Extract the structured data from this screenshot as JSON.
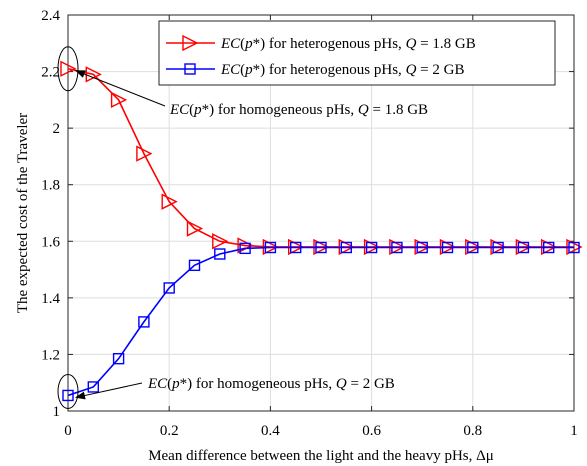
{
  "chart_data": {
    "type": "line",
    "title": "",
    "xlabel": "Mean difference between the light and the heavy pHs, Δμ",
    "ylabel": "The expected cost of the Traveler",
    "xlim": [
      0,
      1
    ],
    "ylim": [
      1,
      2.4
    ],
    "x_ticks": [
      "0",
      "0.2",
      "0.4",
      "0.6",
      "0.8",
      "1"
    ],
    "y_ticks": [
      "1",
      "1.2",
      "1.4",
      "1.6",
      "1.8",
      "2",
      "2.2",
      "2.4"
    ],
    "grid": true,
    "legend_position": "top-right",
    "x": [
      0,
      0.05,
      0.1,
      0.15,
      0.2,
      0.25,
      0.3,
      0.35,
      0.4,
      0.45,
      0.5,
      0.55,
      0.6,
      0.65,
      0.7,
      0.75,
      0.8,
      0.85,
      0.9,
      0.95,
      1.0
    ],
    "series": [
      {
        "name": "EC(p*) for heterogenous pHs, Q = 1.8 GB",
        "color": "#ff0000",
        "marker": "triangle-right",
        "values": [
          2.21,
          2.19,
          2.1,
          1.91,
          1.74,
          1.645,
          1.6,
          1.585,
          1.58,
          1.58,
          1.58,
          1.58,
          1.58,
          1.58,
          1.58,
          1.58,
          1.58,
          1.58,
          1.58,
          1.58,
          1.58
        ]
      },
      {
        "name": "EC(p*) for heterogenous pHs, Q = 2 GB",
        "color": "#0000ff",
        "marker": "square",
        "values": [
          1.055,
          1.085,
          1.185,
          1.315,
          1.435,
          1.515,
          1.555,
          1.575,
          1.578,
          1.578,
          1.578,
          1.578,
          1.578,
          1.578,
          1.578,
          1.578,
          1.578,
          1.578,
          1.578,
          1.578,
          1.578
        ]
      }
    ],
    "annotations": [
      {
        "text": "EC(p*) for homogeneous pHs, Q = 1.8 GB",
        "target_x": 0,
        "target_y": 2.21
      },
      {
        "text": "EC(p*) for homogeneous pHs, Q = 2 GB",
        "target_x": 0,
        "target_y": 1.055
      }
    ]
  }
}
